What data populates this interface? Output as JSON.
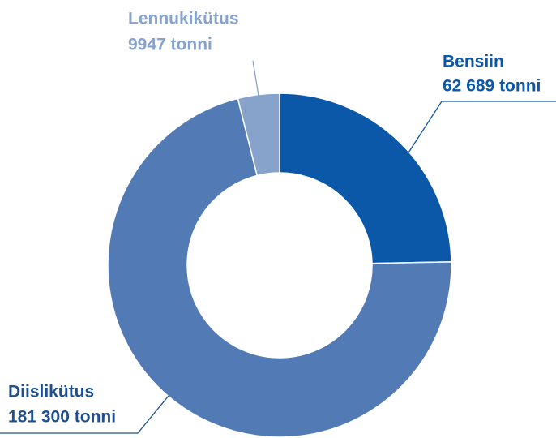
{
  "chart_data": {
    "type": "donut",
    "categories": [
      "Bensiin",
      "Diislikütus",
      "Lennukikütus"
    ],
    "values": [
      62689,
      181300,
      9947
    ],
    "value_labels": [
      "62 689 tonni",
      "181 300 tonni",
      "9947 tonni"
    ],
    "colors": [
      "#0b57a8",
      "#527bb5",
      "#87a3cc"
    ]
  }
}
